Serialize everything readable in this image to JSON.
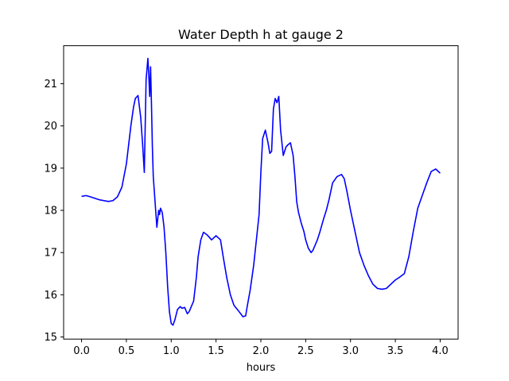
{
  "chart_data": {
    "type": "line",
    "title": "Water Depth h at gauge 2",
    "xlabel": "hours",
    "ylabel": "",
    "xlim": [
      -0.2,
      4.2
    ],
    "ylim": [
      14.95,
      21.9
    ],
    "xticks": [
      0.0,
      0.5,
      1.0,
      1.5,
      2.0,
      2.5,
      3.0,
      3.5,
      4.0
    ],
    "xtick_labels": [
      "0.0",
      "0.5",
      "1.0",
      "1.5",
      "2.0",
      "2.5",
      "3.0",
      "3.5",
      "4.0"
    ],
    "yticks": [
      15,
      16,
      17,
      18,
      19,
      20,
      21
    ],
    "ytick_labels": [
      "15",
      "16",
      "17",
      "18",
      "19",
      "20",
      "21"
    ],
    "grid": false,
    "series": [
      {
        "color": "#0000ff",
        "x": [
          0.0,
          0.05,
          0.1,
          0.2,
          0.3,
          0.35,
          0.4,
          0.45,
          0.5,
          0.55,
          0.58,
          0.6,
          0.63,
          0.66,
          0.68,
          0.7,
          0.72,
          0.74,
          0.75,
          0.76,
          0.77,
          0.78,
          0.79,
          0.8,
          0.82,
          0.84,
          0.86,
          0.87,
          0.88,
          0.9,
          0.92,
          0.94,
          0.96,
          0.98,
          1.0,
          1.02,
          1.04,
          1.07,
          1.1,
          1.12,
          1.15,
          1.18,
          1.2,
          1.25,
          1.28,
          1.3,
          1.33,
          1.36,
          1.4,
          1.43,
          1.45,
          1.5,
          1.55,
          1.58,
          1.62,
          1.66,
          1.7,
          1.75,
          1.8,
          1.83,
          1.85,
          1.88,
          1.92,
          1.95,
          1.98,
          2.0,
          2.02,
          2.05,
          2.08,
          2.1,
          2.12,
          2.14,
          2.16,
          2.18,
          2.2,
          2.22,
          2.25,
          2.28,
          2.3,
          2.33,
          2.36,
          2.38,
          2.4,
          2.42,
          2.45,
          2.48,
          2.5,
          2.53,
          2.56,
          2.58,
          2.6,
          2.63,
          2.66,
          2.7,
          2.73,
          2.76,
          2.8,
          2.85,
          2.9,
          2.93,
          2.96,
          3.0,
          3.05,
          3.1,
          3.15,
          3.2,
          3.25,
          3.3,
          3.35,
          3.4,
          3.45,
          3.5,
          3.55,
          3.6,
          3.65,
          3.7,
          3.75,
          3.8,
          3.85,
          3.9,
          3.95,
          4.0
        ],
        "y": [
          18.33,
          18.35,
          18.32,
          18.25,
          18.21,
          18.23,
          18.32,
          18.55,
          19.1,
          20.0,
          20.45,
          20.65,
          20.72,
          20.2,
          19.6,
          18.9,
          21.1,
          21.6,
          21.2,
          20.7,
          21.4,
          20.5,
          19.5,
          18.8,
          18.2,
          17.6,
          18.0,
          17.9,
          18.05,
          17.95,
          17.6,
          17.0,
          16.2,
          15.6,
          15.32,
          15.28,
          15.4,
          15.65,
          15.72,
          15.68,
          15.7,
          15.55,
          15.6,
          15.85,
          16.4,
          16.9,
          17.3,
          17.48,
          17.42,
          17.35,
          17.3,
          17.4,
          17.3,
          16.9,
          16.4,
          16.0,
          15.75,
          15.62,
          15.48,
          15.5,
          15.75,
          16.1,
          16.7,
          17.3,
          17.9,
          18.9,
          19.7,
          19.9,
          19.6,
          19.35,
          19.4,
          20.4,
          20.65,
          20.55,
          20.7,
          19.9,
          19.3,
          19.5,
          19.55,
          19.6,
          19.3,
          18.8,
          18.2,
          17.95,
          17.7,
          17.5,
          17.3,
          17.1,
          17.0,
          17.05,
          17.15,
          17.3,
          17.5,
          17.8,
          18.0,
          18.25,
          18.65,
          18.8,
          18.85,
          18.75,
          18.45,
          18.0,
          17.5,
          17.0,
          16.7,
          16.45,
          16.25,
          16.15,
          16.13,
          16.15,
          16.25,
          16.35,
          16.42,
          16.5,
          16.9,
          17.5,
          18.05,
          18.35,
          18.65,
          18.92,
          18.98,
          18.88
        ]
      }
    ]
  }
}
